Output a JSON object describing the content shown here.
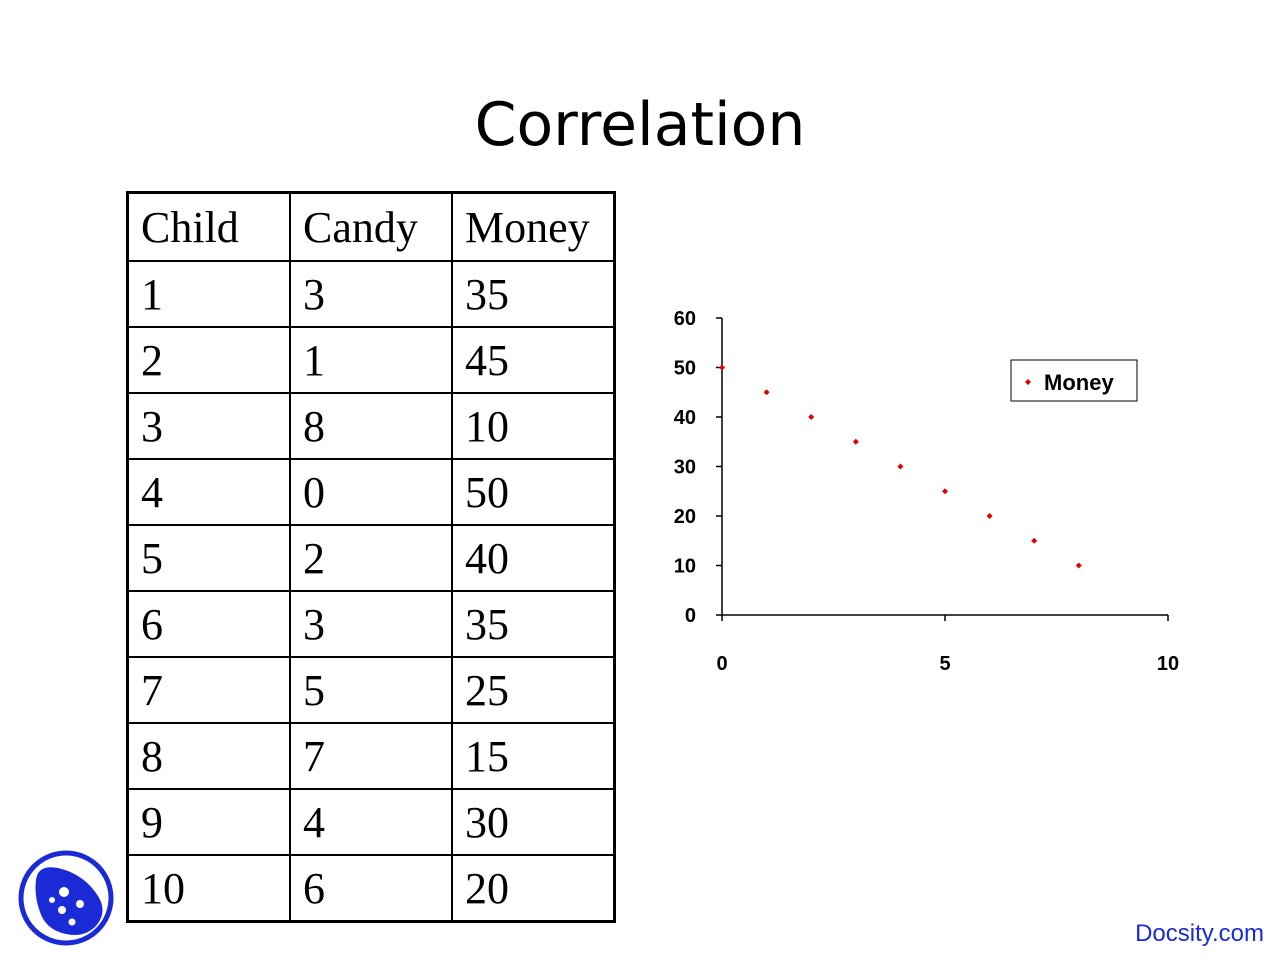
{
  "slide": {
    "title": "Correlation"
  },
  "table": {
    "headers": [
      "Child",
      "Candy",
      "Money"
    ],
    "rows": [
      [
        "1",
        "3",
        "35"
      ],
      [
        "2",
        "1",
        "45"
      ],
      [
        "3",
        "8",
        "10"
      ],
      [
        "4",
        "0",
        "50"
      ],
      [
        "5",
        "2",
        "40"
      ],
      [
        "6",
        "3",
        "35"
      ],
      [
        "7",
        "5",
        "25"
      ],
      [
        "8",
        "7",
        "15"
      ],
      [
        "9",
        "4",
        "30"
      ],
      [
        "10",
        "6",
        "20"
      ]
    ]
  },
  "chart_data": {
    "type": "scatter",
    "series": [
      {
        "name": "Money",
        "x": [
          0,
          1,
          2,
          3,
          4,
          5,
          6,
          7,
          8
        ],
        "y": [
          50,
          45,
          40,
          35,
          30,
          25,
          20,
          15,
          10
        ]
      }
    ],
    "xlim": [
      0,
      10
    ],
    "ylim": [
      0,
      60
    ],
    "xticks": [
      "0",
      "5",
      "10"
    ],
    "yticks": [
      "0",
      "10",
      "20",
      "30",
      "40",
      "50",
      "60"
    ],
    "legend": "top-right",
    "grid": false,
    "marker_color": "#e00000"
  },
  "footer": {
    "brand": "Docsity.com"
  }
}
